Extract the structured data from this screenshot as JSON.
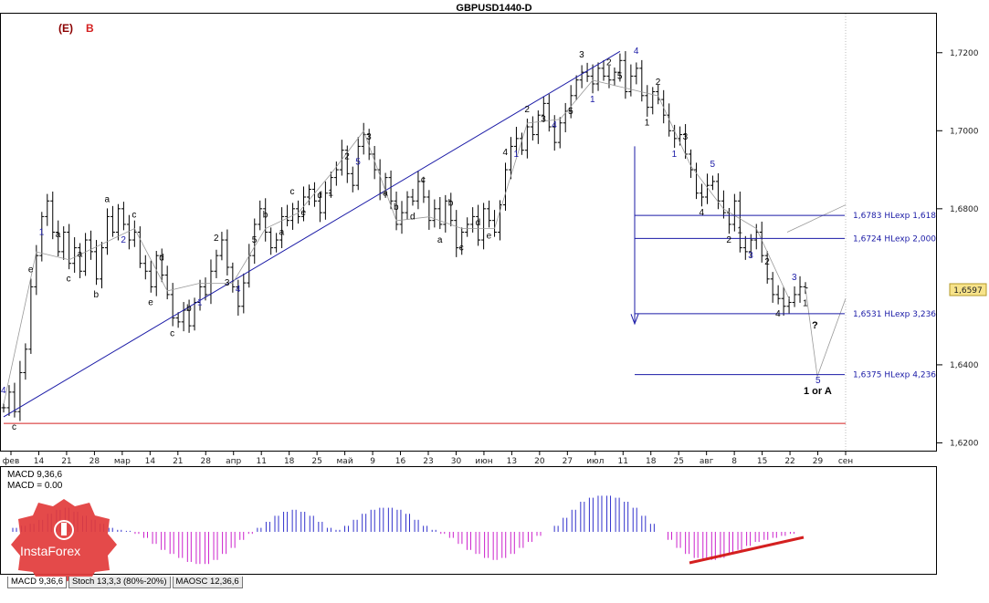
{
  "window_title": "GBPUSD1440-D",
  "corner_marks": {
    "left": "(E)",
    "right": "B"
  },
  "colors": {
    "accent_blue": "#1a1aa6",
    "histogram_blue": "#3232cc",
    "histogram_magenta": "#cc22cc",
    "support_red": "#d42020",
    "price_box": "#f7e38a"
  },
  "current_price": "1,6597",
  "projection_labels": {
    "question": "?",
    "target_wave": "5",
    "target_text": "1 or A"
  },
  "chart_data": [
    {
      "type": "candlestick",
      "title": "GBPUSD1440-D",
      "ylim": [
        1.618,
        1.73
      ],
      "y_ticks": [
        "1,7200",
        "1,7000",
        "1,6800",
        "1,6400",
        "1,6200"
      ],
      "x_ticks": [
        "фев",
        "14",
        "21",
        "28",
        "мар",
        "14",
        "21",
        "28",
        "апр",
        "11",
        "18",
        "25",
        "май",
        "9",
        "16",
        "23",
        "30",
        "июн",
        "13",
        "20",
        "27",
        "июл",
        "11",
        "18",
        "25",
        "авг",
        "8",
        "15",
        "22",
        "29",
        "сен"
      ],
      "price_path": [
        1.629,
        1.633,
        1.628,
        1.638,
        1.644,
        1.66,
        1.668,
        1.678,
        1.682,
        1.674,
        1.669,
        1.674,
        1.666,
        1.67,
        1.664,
        1.672,
        1.669,
        1.662,
        1.67,
        1.678,
        1.674,
        1.68,
        1.676,
        1.672,
        1.674,
        1.666,
        1.664,
        1.66,
        1.668,
        1.663,
        1.658,
        1.652,
        1.651,
        1.654,
        1.65,
        1.656,
        1.66,
        1.658,
        1.664,
        1.668,
        1.672,
        1.665,
        1.66,
        1.655,
        1.661,
        1.668,
        1.676,
        1.68,
        1.674,
        1.67,
        1.672,
        1.678,
        1.677,
        1.68,
        1.678,
        1.683,
        1.685,
        1.682,
        1.679,
        1.684,
        1.688,
        1.69,
        1.695,
        1.689,
        1.686,
        1.696,
        1.699,
        1.694,
        1.69,
        1.684,
        1.688,
        1.682,
        1.676,
        1.679,
        1.683,
        1.682,
        1.687,
        1.683,
        1.677,
        1.68,
        1.676,
        1.682,
        1.677,
        1.67,
        1.674,
        1.676,
        1.678,
        1.672,
        1.68,
        1.677,
        1.674,
        1.681,
        1.69,
        1.696,
        1.698,
        1.695,
        1.701,
        1.699,
        1.704,
        1.707,
        1.701,
        1.697,
        1.702,
        1.705,
        1.709,
        1.713,
        1.715,
        1.714,
        1.712,
        1.716,
        1.714,
        1.713,
        1.715,
        1.718,
        1.71,
        1.714,
        1.716,
        1.709,
        1.706,
        1.71,
        1.708,
        1.704,
        1.7,
        1.698,
        1.699,
        1.694,
        1.69,
        1.684,
        1.683,
        1.686,
        1.687,
        1.682,
        1.679,
        1.676,
        1.682,
        1.67,
        1.669,
        1.672,
        1.674,
        1.668,
        1.662,
        1.658,
        1.657,
        1.655,
        1.656,
        1.658,
        1.66,
        1.6597
      ],
      "annotations": {
        "trendline": "rising blue channel line from the February low to the July high",
        "levels": [
          {
            "value": 1.6783,
            "label": "1,6783 HLexp 1,618"
          },
          {
            "value": 1.6724,
            "label": "1,6724 HLexp 2,000"
          },
          {
            "value": 1.6531,
            "label": "1,6531 HLexp 3,236"
          },
          {
            "value": 1.6375,
            "label": "1,6375 HLexp 4,236"
          }
        ],
        "support_line": 1.625,
        "wave_labels": [
          "4",
          "c",
          "e",
          "1",
          "a",
          "c",
          "a",
          "b",
          "a",
          "2",
          "c",
          "e",
          "d",
          "c",
          "b",
          "1",
          "2",
          "3",
          "4",
          "5",
          "b",
          "a",
          "c",
          "e",
          "d",
          "1",
          "2",
          "5",
          "3",
          "a",
          "b",
          "d",
          "c",
          "a",
          "b",
          "c",
          "d",
          "e",
          "4",
          "1",
          "2",
          "3",
          "4",
          "5",
          "3",
          "1",
          "2",
          "5",
          "4",
          "1",
          "2",
          "1",
          "3",
          "4",
          "5",
          "2",
          "1",
          "3",
          "2",
          "4",
          "3",
          "1"
        ]
      }
    },
    {
      "type": "histogram",
      "title": "MACD 9,36,6",
      "readout_main": "MACD 9,36,6",
      "readout_value": "MACD = 0.00",
      "values": [
        0.2,
        0.3,
        0.4,
        0.6,
        0.9,
        1.1,
        1.2,
        1.0,
        0.8,
        0.6,
        0.4,
        0.2,
        0.1,
        0.05,
        -0.1,
        -0.3,
        -0.6,
        -0.9,
        -1.1,
        -1.3,
        -1.5,
        -1.6,
        -1.6,
        -1.4,
        -1.1,
        -0.8,
        -0.4,
        -0.1,
        0.2,
        0.5,
        0.8,
        1.0,
        1.1,
        1.0,
        0.8,
        0.5,
        0.2,
        0.1,
        0.3,
        0.6,
        0.9,
        1.1,
        1.2,
        1.2,
        1.1,
        0.9,
        0.6,
        0.3,
        0.1,
        -0.1,
        -0.3,
        -0.6,
        -0.9,
        -1.1,
        -1.3,
        -1.4,
        -1.3,
        -1.1,
        -0.8,
        -0.5,
        -0.2,
        0.0,
        0.3,
        0.7,
        1.1,
        1.5,
        1.7,
        1.8,
        1.8,
        1.7,
        1.5,
        1.2,
        0.8,
        0.4,
        0.0,
        -0.4,
        -0.8,
        -1.1,
        -1.3,
        -1.4,
        -1.4,
        -1.3,
        -1.1,
        -0.9,
        -0.7,
        -0.5,
        -0.4,
        -0.3,
        -0.2,
        -0.1,
        0.0
      ]
    }
  ],
  "tabs": [
    "MACD 9,36,6",
    "Stoch 13,3,3 (80%-20%)",
    "MAOSC 12,36,6"
  ],
  "logo": {
    "text": "InstaForex"
  }
}
